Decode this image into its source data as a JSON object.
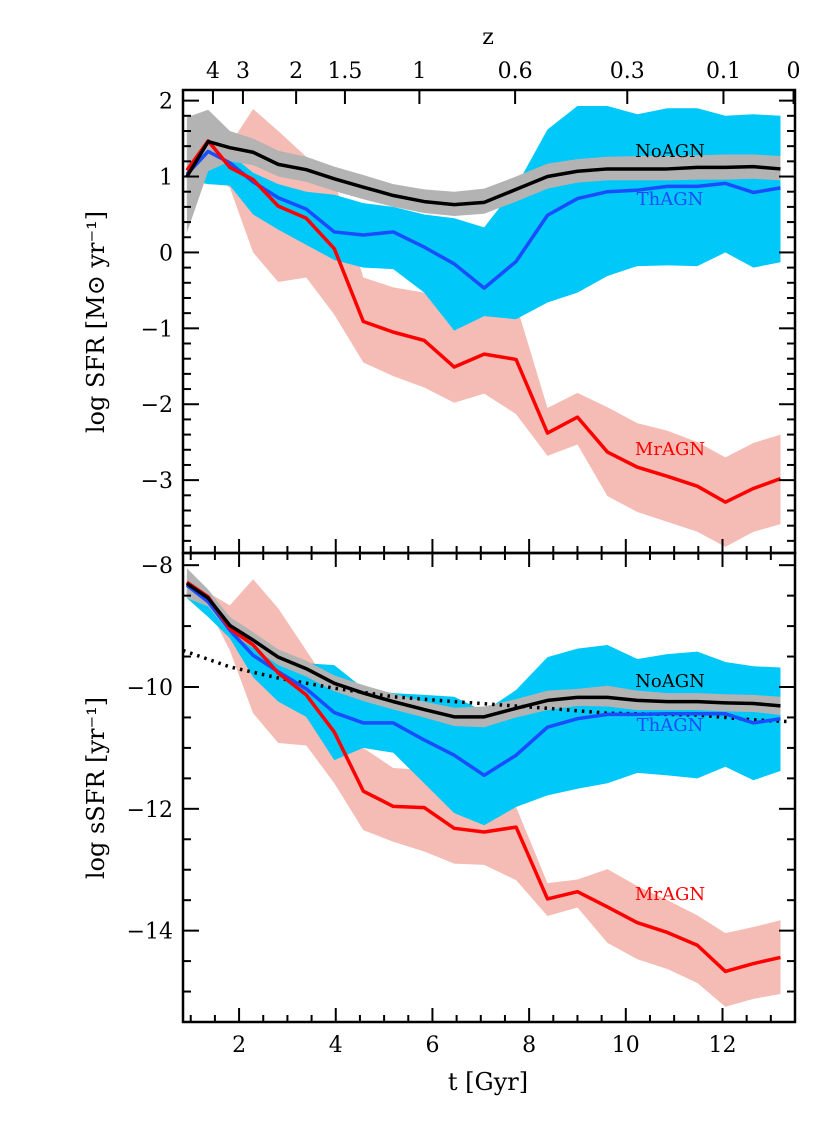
{
  "chart_data": [
    {
      "type": "line",
      "panel": "top",
      "ylabel": "log SFR [M⊙ yr⁻¹]",
      "xlim": [
        0.84,
        13.5
      ],
      "ylim": [
        -3.96,
        2.14
      ],
      "yticks": [
        2,
        1,
        0,
        -1,
        -2,
        -3
      ],
      "yticklabels": [
        "2",
        "1",
        "0",
        "−1",
        "−2",
        "−3"
      ],
      "x": [
        0.92,
        1.36,
        1.81,
        2.29,
        2.81,
        3.39,
        3.97,
        4.57,
        5.19,
        5.83,
        6.45,
        7.07,
        7.73,
        8.38,
        9.0,
        9.62,
        10.24,
        10.86,
        11.48,
        12.06,
        12.64,
        13.2
      ],
      "series": [
        {
          "name": "NoAGN",
          "color": "#000000",
          "band_color": "#b3b3b3",
          "values": [
            1.0,
            1.46,
            1.38,
            1.32,
            1.16,
            1.09,
            0.97,
            0.86,
            0.75,
            0.67,
            0.63,
            0.66,
            0.83,
            1.0,
            1.07,
            1.1,
            1.1,
            1.1,
            1.12,
            1.12,
            1.13,
            1.1
          ],
          "upper": [
            1.78,
            1.88,
            1.6,
            1.5,
            1.34,
            1.26,
            1.13,
            1.02,
            0.9,
            0.83,
            0.8,
            0.84,
            1.0,
            1.17,
            1.23,
            1.26,
            1.27,
            1.27,
            1.28,
            1.29,
            1.29,
            1.27
          ],
          "lower": [
            0.26,
            1.07,
            1.2,
            1.15,
            1.0,
            0.93,
            0.81,
            0.7,
            0.6,
            0.52,
            0.48,
            0.51,
            0.67,
            0.84,
            0.92,
            0.95,
            0.95,
            0.95,
            0.96,
            0.96,
            0.97,
            0.95
          ]
        },
        {
          "name": "ThAGN",
          "color": "#1a4dff",
          "band_color": "#00c8f8",
          "values": [
            1.03,
            1.33,
            1.18,
            0.93,
            0.72,
            0.57,
            0.27,
            0.23,
            0.27,
            0.07,
            -0.15,
            -0.47,
            -0.12,
            0.49,
            0.71,
            0.8,
            0.82,
            0.87,
            0.87,
            0.91,
            0.79,
            0.85
          ],
          "upper": [
            1.05,
            1.38,
            1.3,
            1.05,
            0.9,
            0.8,
            0.76,
            0.65,
            0.6,
            0.5,
            0.45,
            0.33,
            0.87,
            1.62,
            1.93,
            1.93,
            1.82,
            1.9,
            1.9,
            1.8,
            1.82,
            1.8
          ],
          "lower": [
            0.95,
            0.9,
            0.88,
            0.5,
            0.3,
            0.1,
            -0.1,
            -0.2,
            -0.22,
            -0.53,
            -1.03,
            -0.84,
            -0.88,
            -0.66,
            -0.53,
            -0.31,
            -0.18,
            -0.17,
            -0.18,
            0.0,
            -0.2,
            -0.13
          ]
        },
        {
          "name": "MrAGN",
          "color": "#ff0000",
          "band_color": "#f4bcb4",
          "values": [
            1.08,
            1.47,
            1.12,
            0.96,
            0.61,
            0.45,
            0.05,
            -0.91,
            -1.05,
            -1.16,
            -1.51,
            -1.34,
            -1.41,
            -2.38,
            -2.17,
            -2.63,
            -2.83,
            -2.95,
            -3.08,
            -3.29,
            -3.11,
            -2.98
          ],
          "upper": [
            1.64,
            1.84,
            1.42,
            1.89,
            1.6,
            1.26,
            0.96,
            -0.33,
            -0.46,
            -0.53,
            -0.85,
            -0.84,
            -0.68,
            -2.05,
            -1.85,
            -2.04,
            -2.25,
            -2.35,
            -2.5,
            -2.7,
            -2.51,
            -2.4
          ],
          "lower": [
            0.6,
            1.07,
            0.85,
            0.0,
            -0.39,
            -0.33,
            -0.82,
            -1.45,
            -1.63,
            -1.78,
            -1.98,
            -1.86,
            -2.13,
            -2.68,
            -2.53,
            -3.21,
            -3.42,
            -3.55,
            -3.68,
            -3.88,
            -3.68,
            -3.58
          ]
        }
      ]
    },
    {
      "type": "line",
      "panel": "bottom",
      "xlabel": "t [Gyr]",
      "ylabel": "log sSFR [yr⁻¹]",
      "xlim": [
        0.84,
        13.5
      ],
      "ylim": [
        -15.5,
        -7.8
      ],
      "xticks": [
        2,
        4,
        6,
        8,
        10,
        12
      ],
      "xticklabels": [
        "2",
        "4",
        "6",
        "8",
        "10",
        "12"
      ],
      "yticks": [
        -8,
        -10,
        -12,
        -14
      ],
      "yticklabels": [
        "−8",
        "−10",
        "−12",
        "−14"
      ],
      "x": [
        0.92,
        1.36,
        1.81,
        2.29,
        2.81,
        3.39,
        3.97,
        4.57,
        5.19,
        5.83,
        6.45,
        7.07,
        7.73,
        8.38,
        9.0,
        9.62,
        10.24,
        10.86,
        11.48,
        12.06,
        12.64,
        13.2
      ],
      "series": [
        {
          "name": "NoAGN",
          "color": "#000000",
          "band_color": "#b3b3b3",
          "values": [
            -8.3,
            -8.54,
            -8.99,
            -9.23,
            -9.51,
            -9.7,
            -9.94,
            -10.1,
            -10.24,
            -10.37,
            -10.49,
            -10.49,
            -10.35,
            -10.22,
            -10.17,
            -10.17,
            -10.22,
            -10.24,
            -10.24,
            -10.26,
            -10.27,
            -10.31
          ],
          "upper": [
            -8.05,
            -8.4,
            -8.85,
            -9.1,
            -9.38,
            -9.57,
            -9.81,
            -9.97,
            -10.11,
            -10.24,
            -10.34,
            -10.32,
            -10.2,
            -10.06,
            -10.03,
            -9.98,
            -10.06,
            -10.1,
            -10.1,
            -10.12,
            -10.13,
            -10.16
          ],
          "lower": [
            -8.54,
            -8.68,
            -9.12,
            -9.36,
            -9.64,
            -9.83,
            -10.07,
            -10.23,
            -10.37,
            -10.5,
            -10.64,
            -10.66,
            -10.5,
            -10.38,
            -10.31,
            -10.32,
            -10.38,
            -10.38,
            -10.38,
            -10.4,
            -10.41,
            -10.46
          ]
        },
        {
          "name": "ThAGN",
          "color": "#1a4dff",
          "band_color": "#00c8f8",
          "values": [
            -8.33,
            -8.6,
            -9.07,
            -9.48,
            -9.75,
            -10.03,
            -10.42,
            -10.59,
            -10.59,
            -10.87,
            -11.12,
            -11.45,
            -11.12,
            -10.66,
            -10.52,
            -10.45,
            -10.45,
            -10.44,
            -10.44,
            -10.44,
            -10.59,
            -10.52
          ],
          "upper": [
            -8.3,
            -8.5,
            -9.0,
            -9.3,
            -9.55,
            -9.61,
            -9.64,
            -10.02,
            -10.1,
            -10.13,
            -10.16,
            -10.4,
            -10.05,
            -9.51,
            -9.37,
            -9.31,
            -9.54,
            -9.46,
            -9.42,
            -9.59,
            -9.66,
            -9.68
          ],
          "lower": [
            -8.54,
            -8.85,
            -9.2,
            -9.84,
            -10.24,
            -10.49,
            -11.2,
            -11.0,
            -11.08,
            -11.58,
            -12.07,
            -12.27,
            -11.97,
            -11.78,
            -11.67,
            -11.58,
            -11.41,
            -11.45,
            -11.5,
            -11.31,
            -11.53,
            -11.38
          ]
        },
        {
          "name": "MrAGN",
          "color": "#ff0000",
          "band_color": "#f4bcb4",
          "values": [
            -8.28,
            -8.52,
            -9.04,
            -9.31,
            -9.77,
            -10.13,
            -10.74,
            -11.71,
            -11.96,
            -11.98,
            -12.32,
            -12.38,
            -12.3,
            -13.48,
            -13.36,
            -13.61,
            -13.87,
            -14.03,
            -14.24,
            -14.67,
            -14.54,
            -14.44
          ],
          "upper": [
            -8.2,
            -8.45,
            -8.66,
            -8.23,
            -8.71,
            -9.4,
            -10.1,
            -11.0,
            -11.33,
            -11.36,
            -12.07,
            -12.2,
            -11.97,
            -13.22,
            -13.16,
            -12.99,
            -13.27,
            -13.5,
            -13.75,
            -14.04,
            -13.94,
            -13.83
          ],
          "lower": [
            -8.5,
            -8.7,
            -9.4,
            -10.43,
            -10.92,
            -10.96,
            -11.58,
            -12.35,
            -12.54,
            -12.7,
            -12.9,
            -12.92,
            -13.17,
            -13.76,
            -13.62,
            -14.2,
            -14.47,
            -14.63,
            -14.86,
            -15.25,
            -15.12,
            -15.04
          ]
        }
      ],
      "reference_curve": {
        "style": "dotted",
        "color": "#000000",
        "x": [
          0.84,
          1.81,
          2.85,
          3.97,
          5.19,
          6.45,
          6.99,
          8.38,
          9.62,
          11.48,
          12.64,
          13.41
        ],
        "values": [
          -9.4,
          -9.67,
          -9.86,
          -10.02,
          -10.16,
          -10.24,
          -10.27,
          -10.35,
          -10.43,
          -10.46,
          -10.54,
          -10.57
        ]
      }
    }
  ],
  "top_axis": {
    "label": "z",
    "ticklabels": [
      "4",
      "3",
      "2",
      "1.5",
      "1",
      "0.6",
      "0.3",
      "0.1",
      "0"
    ],
    "tick_t": [
      1.46,
      2.08,
      3.18,
      4.19,
      5.73,
      7.71,
      10.03,
      12.02,
      13.47
    ]
  }
}
